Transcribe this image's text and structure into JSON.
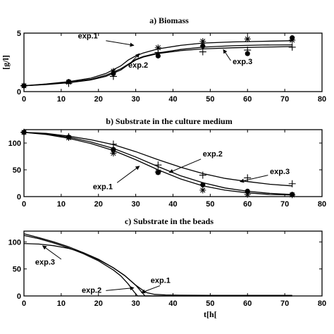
{
  "chart_data": [
    {
      "type": "line",
      "title": "a) Biomass",
      "xlabel": "",
      "ylabel": "[g/l]",
      "xlim": [
        0,
        80
      ],
      "ylim": [
        0,
        5
      ],
      "xticks": [
        0,
        10,
        20,
        30,
        40,
        50,
        60,
        70,
        80
      ],
      "yticks": [
        0,
        5
      ],
      "grid": false,
      "series": [
        {
          "name": "exp.1",
          "model_x": [
            0,
            6,
            12,
            18,
            22,
            26,
            28,
            30,
            32,
            36,
            42,
            48,
            56,
            64,
            72
          ],
          "model_y": [
            0.5,
            0.65,
            0.85,
            1.15,
            1.55,
            2.2,
            2.7,
            3.05,
            3.3,
            3.65,
            3.95,
            4.15,
            4.25,
            4.3,
            4.35
          ],
          "obs_x": [
            0,
            12,
            24,
            36,
            48,
            60,
            72
          ],
          "obs_y": [
            0.5,
            0.8,
            1.75,
            3.75,
            4.3,
            4.5,
            4.4
          ],
          "marker": "star"
        },
        {
          "name": "exp.2",
          "model_x": [
            0,
            6,
            12,
            18,
            22,
            26,
            28,
            30,
            32,
            36,
            42,
            48,
            56,
            64,
            72
          ],
          "model_y": [
            0.5,
            0.62,
            0.8,
            1.05,
            1.4,
            1.95,
            2.35,
            2.75,
            3.0,
            3.3,
            3.6,
            3.8,
            3.92,
            3.98,
            4.0
          ],
          "obs_x": [
            0,
            12,
            24,
            36,
            48,
            60,
            72
          ],
          "obs_y": [
            0.5,
            0.85,
            1.55,
            3.05,
            3.9,
            3.25,
            4.6
          ],
          "marker": "dot"
        },
        {
          "name": "exp.3",
          "model_x": [
            0,
            6,
            12,
            18,
            22,
            26,
            28,
            30,
            32,
            36,
            42,
            48,
            56,
            64,
            72
          ],
          "model_y": [
            0.5,
            0.6,
            0.75,
            1.0,
            1.3,
            1.85,
            2.3,
            2.7,
            2.95,
            3.25,
            3.5,
            3.65,
            3.75,
            3.8,
            3.85
          ],
          "obs_x": [
            0,
            12,
            24,
            36,
            48,
            60,
            72
          ],
          "obs_y": [
            0.5,
            0.7,
            1.3,
            3.35,
            3.4,
            3.55,
            3.8
          ],
          "marker": "plus"
        }
      ],
      "annotations": [
        {
          "text": "exp.1",
          "tx": 14.5,
          "ty": 4.55,
          "ax": 22,
          "ay": 4.35,
          "hx": 29.5,
          "hy": 3.95
        },
        {
          "text": "exp.2",
          "tx": 28,
          "ty": 2.05,
          "ax": 28.3,
          "ay": 2.35,
          "hx": 31,
          "hy": 3.25
        },
        {
          "text": "exp.3",
          "tx": 56,
          "ty": 2.35,
          "ax": 55.5,
          "ay": 2.65,
          "hx": 53.5,
          "hy": 3.6
        }
      ]
    },
    {
      "type": "line",
      "title": "b) Substrate in the culture medium",
      "xlabel": "",
      "ylabel": "",
      "xlim": [
        0,
        80
      ],
      "ylim": [
        0,
        125
      ],
      "xticks": [
        0,
        10,
        20,
        30,
        40,
        50,
        60,
        70,
        80
      ],
      "yticks": [
        0,
        50,
        100
      ],
      "grid": false,
      "series": [
        {
          "name": "exp.1",
          "model_x": [
            0,
            6,
            12,
            18,
            24,
            30,
            36,
            42,
            48,
            54,
            60,
            66,
            72
          ],
          "model_y": [
            120,
            116,
            109,
            99,
            86,
            69,
            50,
            33,
            20,
            12,
            7,
            4,
            3
          ],
          "obs_x": [
            0,
            12,
            24,
            36,
            48,
            60,
            72
          ],
          "obs_y": [
            120,
            110,
            81,
            46,
            12,
            4,
            3
          ],
          "marker": "star"
        },
        {
          "name": "exp.2",
          "model_x": [
            0,
            6,
            12,
            18,
            24,
            30,
            36,
            42,
            48,
            54,
            60,
            66,
            72
          ],
          "model_y": [
            120,
            117,
            111,
            102,
            90,
            74,
            56,
            39,
            26,
            16,
            10,
            6,
            4
          ],
          "obs_x": [
            0,
            12,
            24,
            36,
            48,
            60,
            72
          ],
          "obs_y": [
            120,
            111,
            88,
            45,
            22,
            10,
            4
          ],
          "marker": "dot"
        },
        {
          "name": "exp.3",
          "model_x": [
            0,
            6,
            12,
            18,
            24,
            30,
            36,
            42,
            48,
            54,
            60,
            66,
            72
          ],
          "model_y": [
            120,
            118,
            113,
            106,
            97,
            84,
            69,
            55,
            43,
            34,
            28,
            23,
            20
          ],
          "obs_x": [
            0,
            12,
            24,
            36,
            48,
            60,
            72
          ],
          "obs_y": [
            120,
            112,
            98,
            59,
            40,
            35,
            24
          ],
          "marker": "plus"
        }
      ],
      "annotations": [
        {
          "text": "exp.1",
          "tx": 18.5,
          "ty": 14,
          "ax": 25,
          "ay": 26,
          "hx": 31,
          "hy": 57
        },
        {
          "text": "exp.2",
          "tx": 48,
          "ty": 75,
          "ax": 47.5,
          "ay": 70,
          "hx": 39,
          "hy": 45
        },
        {
          "text": "exp.3",
          "tx": 66,
          "ty": 42,
          "ax": 65.5,
          "ay": 40,
          "hx": 58,
          "hy": 28
        }
      ]
    },
    {
      "type": "line",
      "title": "c) Substrate in the beads",
      "xlabel": "t[h[",
      "ylabel": "",
      "xlim": [
        0,
        80
      ],
      "ylim": [
        0,
        120
      ],
      "xticks": [
        0,
        10,
        20,
        30,
        40,
        50,
        60,
        70,
        80
      ],
      "yticks": [
        0,
        50,
        100
      ],
      "grid": false,
      "series": [
        {
          "name": "exp.1",
          "model_x": [
            0,
            4,
            8,
            12,
            16,
            20,
            24,
            27,
            30,
            32,
            33,
            35,
            38,
            42,
            50,
            72
          ],
          "model_y": [
            115,
            108,
            100,
            91,
            80,
            67,
            52,
            38,
            20,
            10,
            6,
            3,
            2,
            1.5,
            1,
            1
          ],
          "marker": "none"
        },
        {
          "name": "exp.2",
          "model_x": [
            0,
            4,
            8,
            12,
            16,
            20,
            24,
            26,
            28,
            29.5,
            30.5,
            40,
            72
          ],
          "model_y": [
            112,
            106,
            98,
            89,
            78,
            65,
            48,
            37,
            22,
            8,
            0,
            0,
            0
          ],
          "marker": "none"
        },
        {
          "name": "exp.3",
          "model_x": [
            0,
            4,
            8,
            12,
            16,
            20,
            24,
            27,
            30,
            31.5,
            32.5,
            40,
            72
          ],
          "model_y": [
            97,
            96,
            93,
            88,
            80,
            68,
            52,
            38,
            20,
            8,
            0,
            0,
            0
          ],
          "marker": "none"
        }
      ],
      "annotations": [
        {
          "text": "exp.3",
          "tx": 3,
          "ty": 58,
          "ax": 10,
          "ay": 68,
          "hx": 5,
          "hy": 93
        },
        {
          "text": "exp.2",
          "tx": 15.5,
          "ty": 6,
          "ax": 22,
          "ay": 10,
          "hx": 29.5,
          "hy": 15
        },
        {
          "text": "exp.1",
          "tx": 34,
          "ty": 24,
          "ax": 36.5,
          "ay": 19,
          "hx": 31.5,
          "hy": 6
        }
      ]
    }
  ]
}
